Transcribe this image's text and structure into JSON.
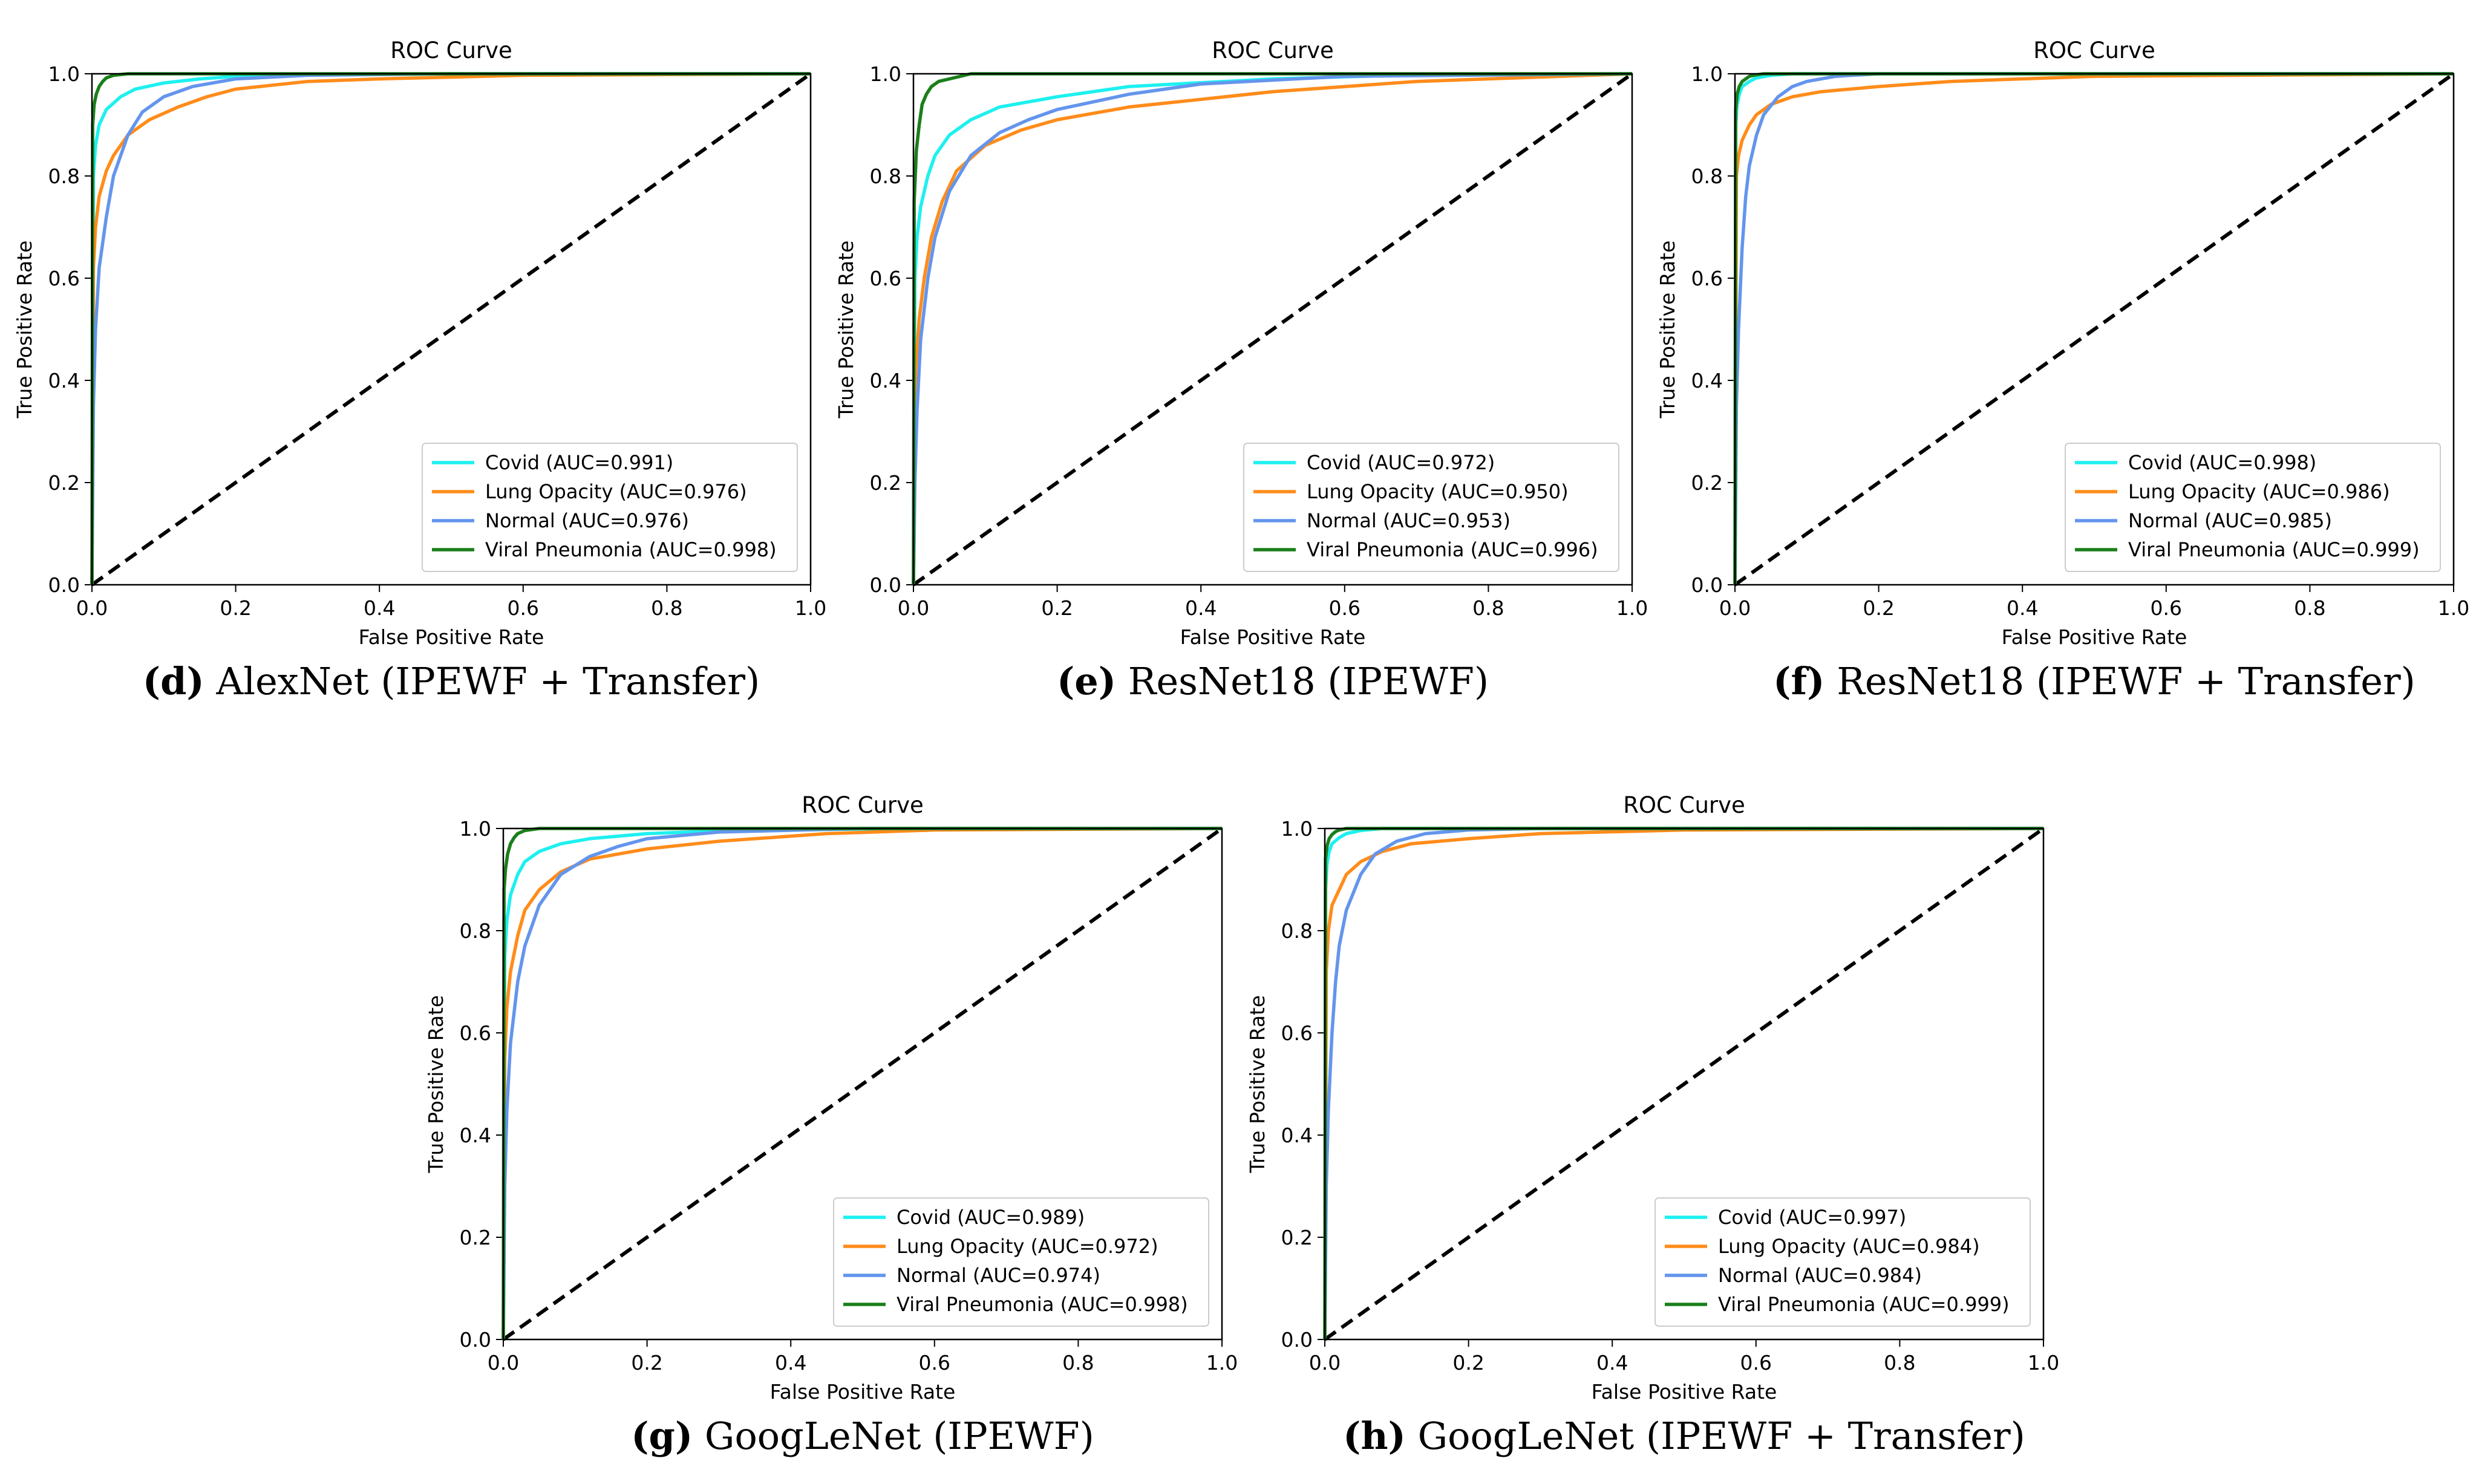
{
  "colors": {
    "covid": "#1ef0f0",
    "lung_opacity": "#ff8c1a",
    "normal": "#6495ed",
    "viral_pneumonia": "#1a7f1a",
    "diagonal": "#000000"
  },
  "chart_data": [
    {
      "type": "line",
      "id": "d",
      "title": "ROC Curve",
      "xlabel": "False Positive Rate",
      "ylabel": "True Positive Rate",
      "xlim": [
        0,
        1
      ],
      "ylim": [
        0,
        1
      ],
      "xticks": [
        "0.0",
        "0.2",
        "0.4",
        "0.6",
        "0.8",
        "1.0"
      ],
      "yticks": [
        "0.0",
        "0.2",
        "0.4",
        "0.6",
        "0.8",
        "1.0"
      ],
      "legend_position": "lower-right",
      "caption_letter": "(d)",
      "caption_text": "AlexNet (IPEWF + Transfer)",
      "series": [
        {
          "name": "Covid (AUC=0.991)",
          "color_key": "covid",
          "x": [
            0,
            0.002,
            0.005,
            0.01,
            0.02,
            0.04,
            0.06,
            0.1,
            0.15,
            0.2,
            0.3,
            0.5,
            1
          ],
          "y": [
            0,
            0.8,
            0.86,
            0.9,
            0.93,
            0.955,
            0.97,
            0.982,
            0.99,
            0.995,
            0.998,
            1,
            1
          ]
        },
        {
          "name": "Lung Opacity (AUC=0.976)",
          "color_key": "lung_opacity",
          "x": [
            0,
            0.002,
            0.005,
            0.01,
            0.02,
            0.03,
            0.05,
            0.08,
            0.12,
            0.16,
            0.2,
            0.3,
            0.4,
            0.6,
            1
          ],
          "y": [
            0,
            0.62,
            0.7,
            0.76,
            0.81,
            0.84,
            0.88,
            0.91,
            0.935,
            0.955,
            0.97,
            0.985,
            0.99,
            0.997,
            1
          ]
        },
        {
          "name": "Normal (AUC=0.976)",
          "color_key": "normal",
          "x": [
            0,
            0.002,
            0.005,
            0.01,
            0.02,
            0.03,
            0.05,
            0.07,
            0.1,
            0.14,
            0.2,
            0.3,
            0.5,
            1
          ],
          "y": [
            0,
            0.35,
            0.5,
            0.62,
            0.72,
            0.8,
            0.88,
            0.925,
            0.955,
            0.975,
            0.99,
            0.997,
            1,
            1
          ]
        },
        {
          "name": "Viral Pneumonia (AUC=0.998)",
          "color_key": "viral_pneumonia",
          "x": [
            0,
            0.001,
            0.003,
            0.006,
            0.01,
            0.015,
            0.02,
            0.03,
            0.05,
            1
          ],
          "y": [
            0,
            0.9,
            0.94,
            0.96,
            0.975,
            0.985,
            0.992,
            0.997,
            1,
            1
          ]
        }
      ]
    },
    {
      "type": "line",
      "id": "e",
      "title": "ROC Curve",
      "xlabel": "False Positive Rate",
      "ylabel": "True Positive Rate",
      "xlim": [
        0,
        1
      ],
      "ylim": [
        0,
        1
      ],
      "xticks": [
        "0.0",
        "0.2",
        "0.4",
        "0.6",
        "0.8",
        "1.0"
      ],
      "yticks": [
        "0.0",
        "0.2",
        "0.4",
        "0.6",
        "0.8",
        "1.0"
      ],
      "legend_position": "lower-right",
      "caption_letter": "(e)",
      "caption_text": "ResNet18 (IPEWF)",
      "series": [
        {
          "name": "Covid (AUC=0.972)",
          "color_key": "covid",
          "x": [
            0,
            0.002,
            0.005,
            0.01,
            0.02,
            0.03,
            0.05,
            0.08,
            0.12,
            0.2,
            0.3,
            0.5,
            0.7,
            1
          ],
          "y": [
            0,
            0.6,
            0.68,
            0.74,
            0.8,
            0.84,
            0.88,
            0.91,
            0.935,
            0.955,
            0.975,
            0.99,
            0.998,
            1
          ]
        },
        {
          "name": "Lung Opacity (AUC=0.950)",
          "color_key": "lung_opacity",
          "x": [
            0,
            0.003,
            0.008,
            0.015,
            0.025,
            0.04,
            0.06,
            0.1,
            0.15,
            0.2,
            0.3,
            0.4,
            0.5,
            0.7,
            1
          ],
          "y": [
            0,
            0.42,
            0.52,
            0.6,
            0.68,
            0.75,
            0.81,
            0.86,
            0.89,
            0.91,
            0.935,
            0.95,
            0.965,
            0.985,
            1
          ]
        },
        {
          "name": "Normal (AUC=0.953)",
          "color_key": "normal",
          "x": [
            0,
            0.002,
            0.005,
            0.01,
            0.02,
            0.03,
            0.05,
            0.08,
            0.12,
            0.16,
            0.2,
            0.3,
            0.4,
            0.6,
            1
          ],
          "y": [
            0,
            0.2,
            0.34,
            0.48,
            0.6,
            0.68,
            0.77,
            0.84,
            0.885,
            0.91,
            0.93,
            0.96,
            0.98,
            0.995,
            1
          ]
        },
        {
          "name": "Viral Pneumonia (AUC=0.996)",
          "color_key": "viral_pneumonia",
          "x": [
            0,
            0.001,
            0.004,
            0.008,
            0.012,
            0.018,
            0.025,
            0.035,
            0.05,
            0.08,
            1
          ],
          "y": [
            0,
            0.75,
            0.85,
            0.9,
            0.94,
            0.96,
            0.975,
            0.985,
            0.99,
            1,
            1
          ]
        }
      ]
    },
    {
      "type": "line",
      "id": "f",
      "title": "ROC Curve",
      "xlabel": "False Positive Rate",
      "ylabel": "True Positive Rate",
      "xlim": [
        0,
        1
      ],
      "ylim": [
        0,
        1
      ],
      "xticks": [
        "0.0",
        "0.2",
        "0.4",
        "0.6",
        "0.8",
        "1.0"
      ],
      "yticks": [
        "0.0",
        "0.2",
        "0.4",
        "0.6",
        "0.8",
        "1.0"
      ],
      "legend_position": "lower-right",
      "caption_letter": "(f)",
      "caption_text": "ResNet18 (IPEWF + Transfer)",
      "series": [
        {
          "name": "Covid (AUC=0.998)",
          "color_key": "covid",
          "x": [
            0,
            0.001,
            0.003,
            0.006,
            0.01,
            0.02,
            0.03,
            0.05,
            0.08,
            1
          ],
          "y": [
            0,
            0.9,
            0.94,
            0.96,
            0.975,
            0.985,
            0.992,
            0.997,
            1,
            1
          ]
        },
        {
          "name": "Lung Opacity (AUC=0.986)",
          "color_key": "lung_opacity",
          "x": [
            0,
            0.002,
            0.005,
            0.01,
            0.02,
            0.03,
            0.05,
            0.08,
            0.12,
            0.2,
            0.3,
            0.5,
            1
          ],
          "y": [
            0,
            0.8,
            0.84,
            0.87,
            0.9,
            0.92,
            0.94,
            0.955,
            0.965,
            0.975,
            0.985,
            0.995,
            1
          ]
        },
        {
          "name": "Normal (AUC=0.985)",
          "color_key": "normal",
          "x": [
            0,
            0.002,
            0.005,
            0.01,
            0.015,
            0.02,
            0.03,
            0.04,
            0.06,
            0.08,
            0.1,
            0.14,
            0.2,
            1
          ],
          "y": [
            0,
            0.35,
            0.5,
            0.66,
            0.76,
            0.82,
            0.88,
            0.92,
            0.955,
            0.975,
            0.985,
            0.995,
            1,
            1
          ]
        },
        {
          "name": "Viral Pneumonia (AUC=0.999)",
          "color_key": "viral_pneumonia",
          "x": [
            0,
            0.001,
            0.003,
            0.006,
            0.01,
            0.015,
            0.02,
            0.03,
            0.04,
            1
          ],
          "y": [
            0,
            0.93,
            0.96,
            0.975,
            0.985,
            0.99,
            0.995,
            0.998,
            1,
            1
          ]
        }
      ]
    },
    {
      "type": "line",
      "id": "g",
      "title": "ROC Curve",
      "xlabel": "False Positive Rate",
      "ylabel": "True Positive Rate",
      "xlim": [
        0,
        1
      ],
      "ylim": [
        0,
        1
      ],
      "xticks": [
        "0.0",
        "0.2",
        "0.4",
        "0.6",
        "0.8",
        "1.0"
      ],
      "yticks": [
        "0.0",
        "0.2",
        "0.4",
        "0.6",
        "0.8",
        "1.0"
      ],
      "legend_position": "lower-right",
      "caption_letter": "(g)",
      "caption_text": "GoogLeNet (IPEWF)",
      "series": [
        {
          "name": "Covid (AUC=0.989)",
          "color_key": "covid",
          "x": [
            0,
            0.002,
            0.005,
            0.01,
            0.02,
            0.03,
            0.05,
            0.08,
            0.12,
            0.2,
            0.3,
            0.5,
            1
          ],
          "y": [
            0,
            0.75,
            0.82,
            0.87,
            0.91,
            0.935,
            0.955,
            0.97,
            0.98,
            0.99,
            0.995,
            0.999,
            1
          ]
        },
        {
          "name": "Lung Opacity (AUC=0.972)",
          "color_key": "lung_opacity",
          "x": [
            0,
            0.002,
            0.005,
            0.01,
            0.02,
            0.03,
            0.05,
            0.08,
            0.12,
            0.2,
            0.3,
            0.45,
            0.6,
            1
          ],
          "y": [
            0,
            0.55,
            0.65,
            0.72,
            0.79,
            0.84,
            0.88,
            0.915,
            0.94,
            0.96,
            0.975,
            0.99,
            0.997,
            1
          ]
        },
        {
          "name": "Normal (AUC=0.974)",
          "color_key": "normal",
          "x": [
            0,
            0.002,
            0.005,
            0.01,
            0.02,
            0.03,
            0.05,
            0.08,
            0.12,
            0.16,
            0.2,
            0.3,
            0.5,
            1
          ],
          "y": [
            0,
            0.3,
            0.45,
            0.58,
            0.7,
            0.77,
            0.85,
            0.91,
            0.945,
            0.965,
            0.98,
            0.993,
            1,
            1
          ]
        },
        {
          "name": "Viral Pneumonia (AUC=0.998)",
          "color_key": "viral_pneumonia",
          "x": [
            0,
            0.001,
            0.003,
            0.006,
            0.01,
            0.015,
            0.02,
            0.03,
            0.05,
            1
          ],
          "y": [
            0,
            0.88,
            0.92,
            0.95,
            0.97,
            0.982,
            0.99,
            0.996,
            1,
            1
          ]
        }
      ]
    },
    {
      "type": "line",
      "id": "h",
      "title": "ROC Curve",
      "xlabel": "False Positive Rate",
      "ylabel": "True Positive Rate",
      "xlim": [
        0,
        1
      ],
      "ylim": [
        0,
        1
      ],
      "xticks": [
        "0.0",
        "0.2",
        "0.4",
        "0.6",
        "0.8",
        "1.0"
      ],
      "yticks": [
        "0.0",
        "0.2",
        "0.4",
        "0.6",
        "0.8",
        "1.0"
      ],
      "legend_position": "lower-right",
      "caption_letter": "(h)",
      "caption_text": "GoogLeNet (IPEWF + Transfer)",
      "series": [
        {
          "name": "Covid (AUC=0.997)",
          "color_key": "covid",
          "x": [
            0,
            0.001,
            0.003,
            0.006,
            0.01,
            0.02,
            0.03,
            0.05,
            0.08,
            1
          ],
          "y": [
            0,
            0.88,
            0.93,
            0.955,
            0.97,
            0.982,
            0.99,
            0.996,
            1,
            1
          ]
        },
        {
          "name": "Lung Opacity (AUC=0.984)",
          "color_key": "lung_opacity",
          "x": [
            0,
            0.002,
            0.005,
            0.01,
            0.02,
            0.03,
            0.05,
            0.08,
            0.12,
            0.2,
            0.3,
            0.5,
            1
          ],
          "y": [
            0,
            0.72,
            0.8,
            0.85,
            0.88,
            0.91,
            0.935,
            0.955,
            0.97,
            0.98,
            0.99,
            0.997,
            1
          ]
        },
        {
          "name": "Normal (AUC=0.984)",
          "color_key": "normal",
          "x": [
            0,
            0.002,
            0.005,
            0.01,
            0.015,
            0.02,
            0.03,
            0.05,
            0.07,
            0.1,
            0.14,
            0.2,
            0.3,
            1
          ],
          "y": [
            0,
            0.3,
            0.45,
            0.6,
            0.7,
            0.77,
            0.84,
            0.91,
            0.95,
            0.975,
            0.99,
            0.997,
            1,
            1
          ]
        },
        {
          "name": "Viral Pneumonia (AUC=0.999)",
          "color_key": "viral_pneumonia",
          "x": [
            0,
            0.001,
            0.003,
            0.006,
            0.01,
            0.015,
            0.02,
            0.03,
            1
          ],
          "y": [
            0,
            0.94,
            0.965,
            0.98,
            0.988,
            0.994,
            0.997,
            1,
            1
          ]
        }
      ]
    }
  ]
}
